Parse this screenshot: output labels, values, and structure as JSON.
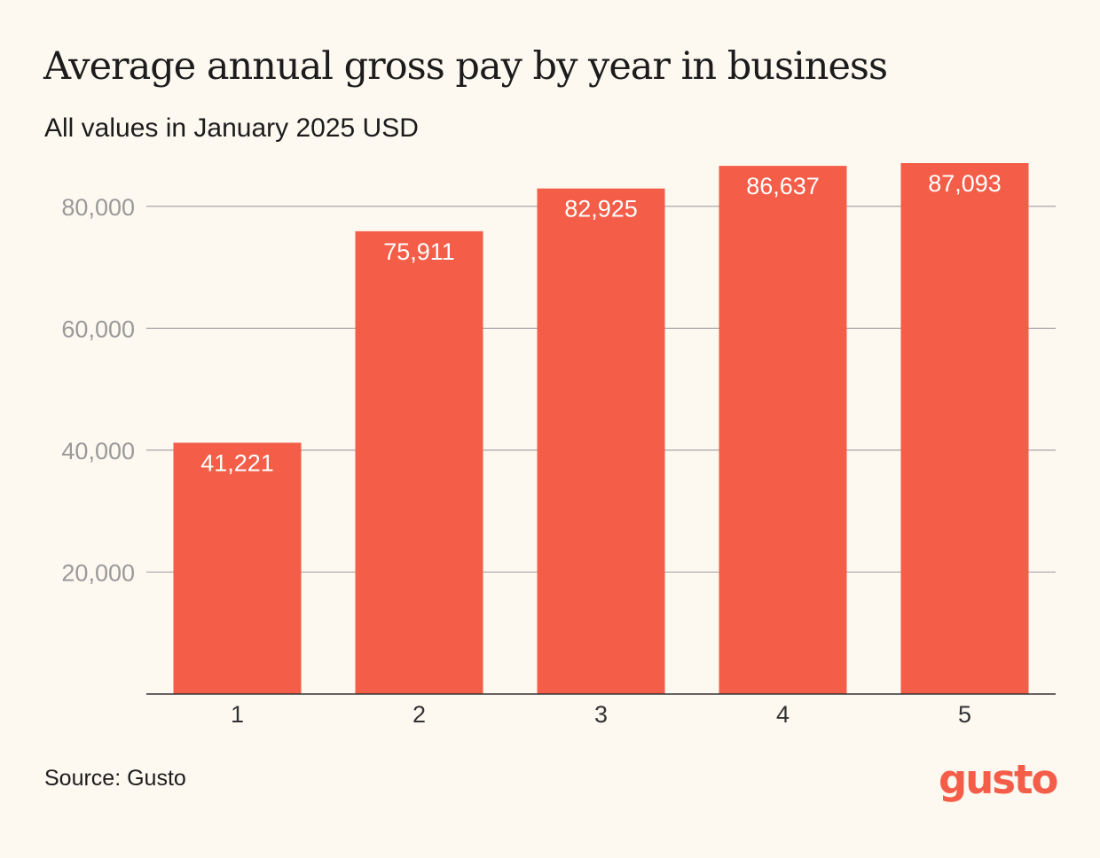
{
  "chart_data": {
    "type": "bar",
    "title": "Average annual gross pay by year in business",
    "subtitle": "All values in January 2025 USD",
    "xlabel": "",
    "ylabel": "",
    "categories": [
      "1",
      "2",
      "3",
      "4",
      "5"
    ],
    "values": [
      41221,
      75911,
      82925,
      86637,
      87093
    ],
    "value_labels": [
      "41,221",
      "75,911",
      "82,925",
      "86,637",
      "87,093"
    ],
    "ylim": [
      0,
      87093
    ],
    "yticks": [
      20000,
      40000,
      60000,
      80000
    ],
    "ytick_labels": [
      "20,000",
      "40,000",
      "60,000",
      "80,000"
    ],
    "grid": true,
    "legend": "none",
    "bar_color": "#f45d48",
    "grid_color": "#a8a8a8",
    "axis_color": "#333333",
    "tick_label_color": "#9a9a9a",
    "value_label_color": "#ffffff"
  },
  "source": "Source: Gusto",
  "logo_text": "gusto"
}
